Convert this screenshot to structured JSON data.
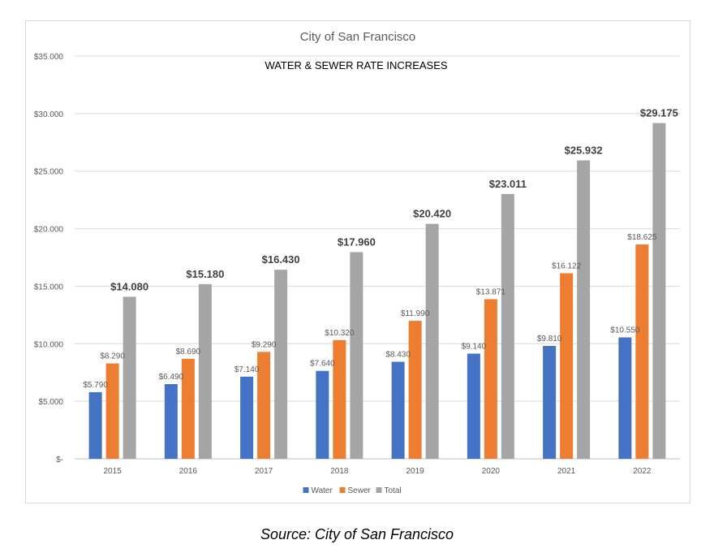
{
  "source_note": "Source: City of San Francisco",
  "chart_data": {
    "type": "bar",
    "title": "City of San Francisco",
    "subtitle": "WATER & SEWER RATE INCREASES",
    "xlabel": "",
    "ylabel": "",
    "categories": [
      "2015",
      "2016",
      "2017",
      "2018",
      "2019",
      "2020",
      "2021",
      "2022"
    ],
    "series": [
      {
        "name": "Water",
        "color": "#4472c4",
        "values": [
          5.79,
          6.49,
          7.14,
          7.64,
          8.43,
          9.14,
          9.81,
          10.55
        ],
        "labels": [
          "$5.790",
          "$6.490",
          "$7.140",
          "$7.640",
          "$8.430",
          "$9.140",
          "$9.810",
          "$10.550"
        ]
      },
      {
        "name": "Sewer",
        "color": "#ed7d31",
        "values": [
          8.29,
          8.69,
          9.29,
          10.32,
          11.99,
          13.871,
          16.122,
          18.625
        ],
        "labels": [
          "$8.290",
          "$8.690",
          "$9.290",
          "$10.320",
          "$11.990",
          "$13.871",
          "$16.122",
          "$18.625"
        ]
      },
      {
        "name": "Total",
        "color": "#a5a5a5",
        "values": [
          14.08,
          15.18,
          16.43,
          17.96,
          20.42,
          23.011,
          25.932,
          29.175
        ],
        "labels": [
          "$14.080",
          "$15.180",
          "$16.430",
          "$17.960",
          "$20.420",
          "$23.011",
          "$25.932",
          "$29.175"
        ]
      }
    ],
    "yticks": [
      0,
      5,
      10,
      15,
      20,
      25,
      30,
      35
    ],
    "ytick_labels": [
      "$-",
      "$5.000",
      "$10.000",
      "$15.000",
      "$20.000",
      "$25.000",
      "$30.000",
      "$35.000"
    ],
    "ylim": [
      0,
      35
    ],
    "grid": true,
    "legend_position": "bottom"
  }
}
